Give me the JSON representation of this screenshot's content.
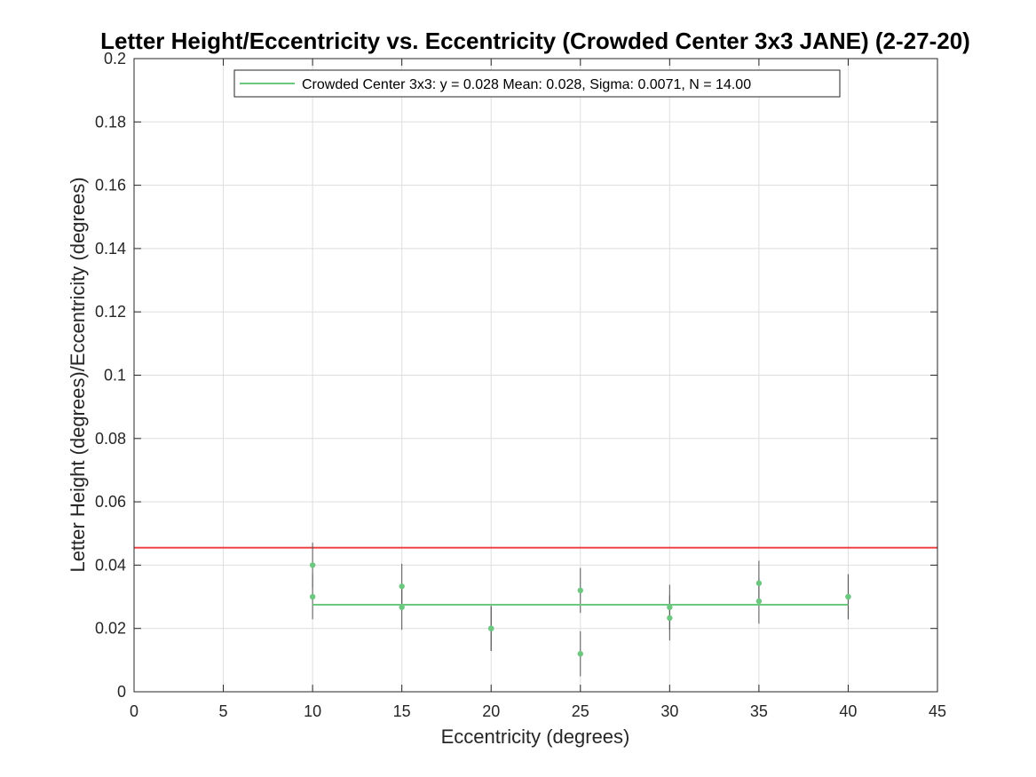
{
  "chart_data": {
    "type": "scatter",
    "title": "Letter Height/Eccentricity vs. Eccentricity (Crowded Center 3x3 JANE) (2-27-20)",
    "xlabel": "Eccentricity (degrees)",
    "ylabel": "Letter Height (degrees)/Eccentricity (degrees)",
    "xlim": [
      0,
      45
    ],
    "ylim": [
      0,
      0.2
    ],
    "xticks": [
      0,
      5,
      10,
      15,
      20,
      25,
      30,
      35,
      40,
      45
    ],
    "xtick_labels": [
      "0",
      "5",
      "10",
      "15",
      "20",
      "25",
      "30",
      "35",
      "40",
      "45"
    ],
    "yticks": [
      0,
      0.02,
      0.04,
      0.06,
      0.08,
      0.1,
      0.12,
      0.14,
      0.16,
      0.18,
      0.2
    ],
    "ytick_labels": [
      "0",
      "0.02",
      "0.04",
      "0.06",
      "0.08",
      "0.1",
      "0.12",
      "0.14",
      "0.16",
      "0.18",
      "0.2"
    ],
    "grid": true,
    "legend_position": "top",
    "colors": {
      "points": "#6cc77f",
      "fit": "#6cc77f",
      "reference": "#ee4444",
      "errorbars": "#555555"
    },
    "series": [
      {
        "name": "Crowded Center 3x3: y = 0.028 Mean: 0.028, Sigma: 0.0071, N = 14.00",
        "points": [
          {
            "x": 10,
            "y": 0.04,
            "err": 0.0071
          },
          {
            "x": 10,
            "y": 0.03,
            "err": 0.0071
          },
          {
            "x": 15,
            "y": 0.0333,
            "err": 0.0071
          },
          {
            "x": 15,
            "y": 0.0267,
            "err": 0.0071
          },
          {
            "x": 20,
            "y": 0.02,
            "err": 0.0071
          },
          {
            "x": 20,
            "y": 0.02,
            "err": 0.0071
          },
          {
            "x": 25,
            "y": 0.032,
            "err": 0.0071
          },
          {
            "x": 25,
            "y": 0.012,
            "err": 0.0071
          },
          {
            "x": 30,
            "y": 0.0267,
            "err": 0.0071
          },
          {
            "x": 30,
            "y": 0.0233,
            "err": 0.0071
          },
          {
            "x": 35,
            "y": 0.0343,
            "err": 0.0071
          },
          {
            "x": 35,
            "y": 0.0286,
            "err": 0.0071
          },
          {
            "x": 40,
            "y": 0.03,
            "err": 0.0071
          },
          {
            "x": 40,
            "y": 0.03,
            "err": 0.0071
          }
        ],
        "fit": {
          "y": 0.0275,
          "x_range": [
            10,
            40
          ]
        }
      }
    ],
    "reference_line": {
      "y": 0.0455
    }
  }
}
